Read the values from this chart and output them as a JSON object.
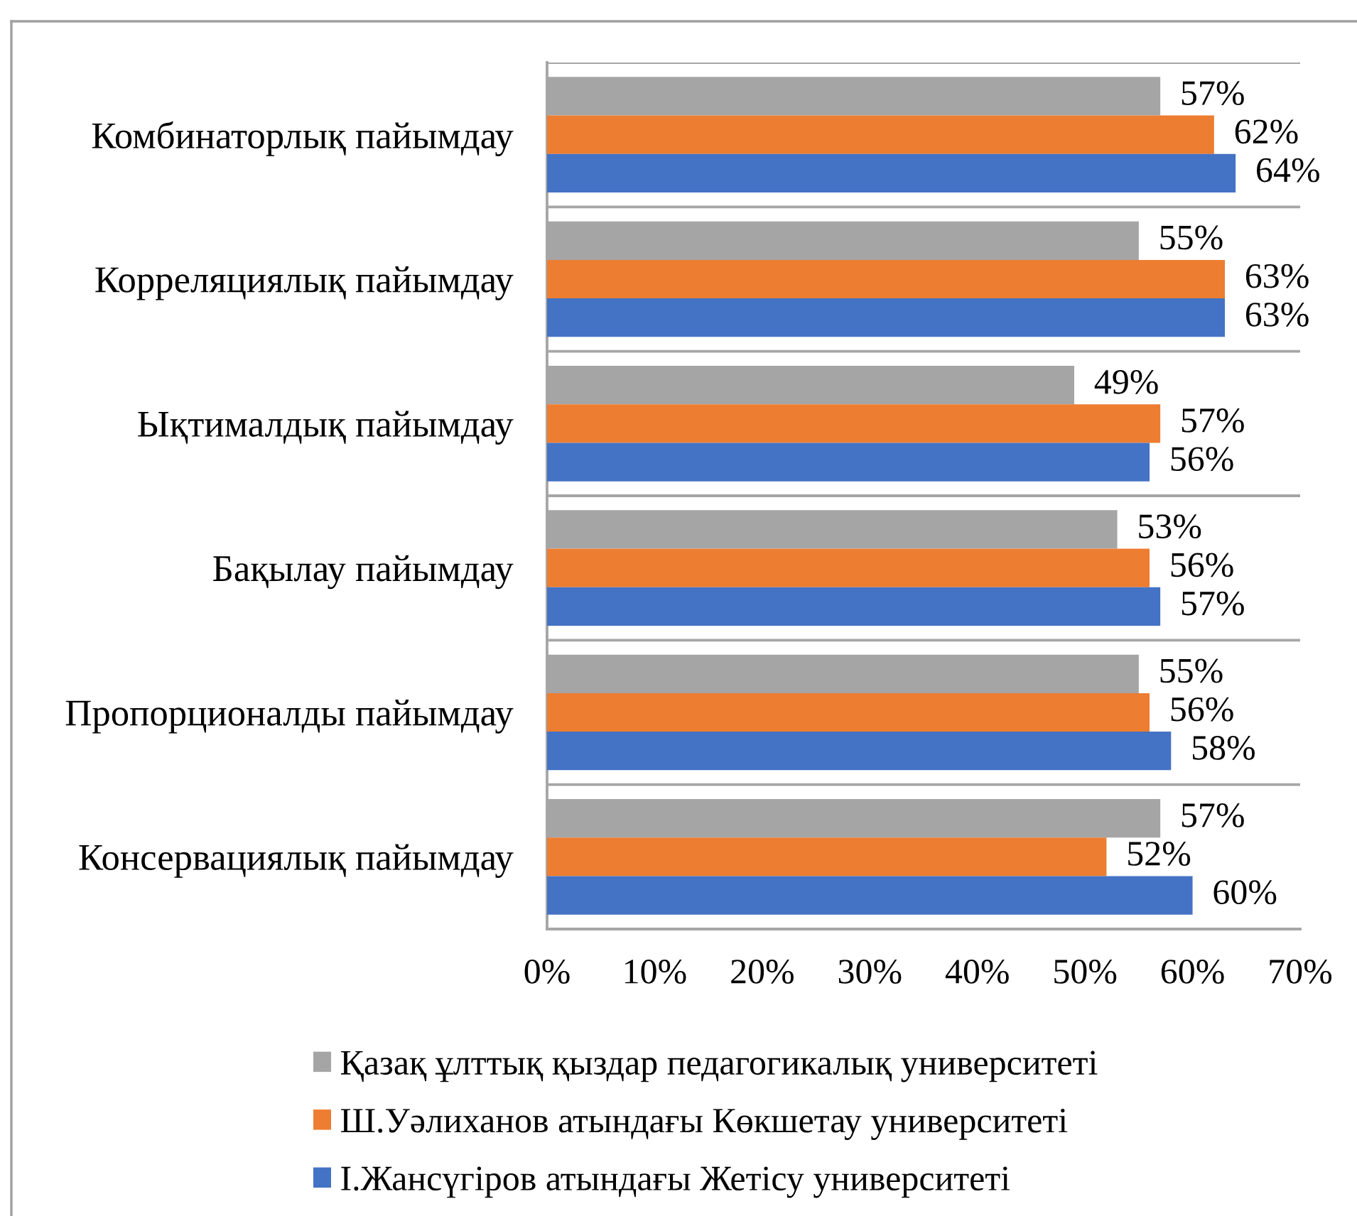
{
  "chart_data": {
    "type": "bar",
    "orientation": "horizontal",
    "categories": [
      "Комбинаторлық пайымдау",
      "Корреляциялық пайымдау",
      "Ықтималдық пайымдау",
      "Бақылау пайымдау",
      "Пропорционалды пайымдау",
      "Консервациялық пайымдау"
    ],
    "series": [
      {
        "name": "Қазақ ұлттық қыздар педагогикалық университеті",
        "color": "#a5a5a5",
        "values": [
          57,
          55,
          49,
          53,
          55,
          57
        ],
        "value_labels": [
          "57%",
          "55%",
          "49%",
          "53%",
          "55%",
          "57%"
        ]
      },
      {
        "name": "Ш.Уәлиханов атындағы Көкшетау университеті",
        "color": "#ed7d31",
        "values": [
          62,
          63,
          57,
          56,
          56,
          52
        ],
        "value_labels": [
          "62%",
          "63%",
          "57%",
          "56%",
          "56%",
          "52%"
        ]
      },
      {
        "name": "І.Жансүгіров атындағы Жетісу университеті",
        "color": "#4472c4",
        "values": [
          64,
          63,
          56,
          57,
          58,
          60
        ],
        "value_labels": [
          "64%",
          "63%",
          "56%",
          "57%",
          "58%",
          "60%"
        ]
      }
    ],
    "xlim": [
      0,
      70
    ],
    "xticks": [
      {
        "value": 0,
        "label": "0%"
      },
      {
        "value": 10,
        "label": "10%"
      },
      {
        "value": 20,
        "label": "20%"
      },
      {
        "value": 30,
        "label": "30%"
      },
      {
        "value": 40,
        "label": "40%"
      },
      {
        "value": 50,
        "label": "50%"
      },
      {
        "value": 60,
        "label": "60%"
      },
      {
        "value": 70,
        "label": "70%"
      }
    ],
    "grid": "y",
    "legend": "bottom"
  }
}
